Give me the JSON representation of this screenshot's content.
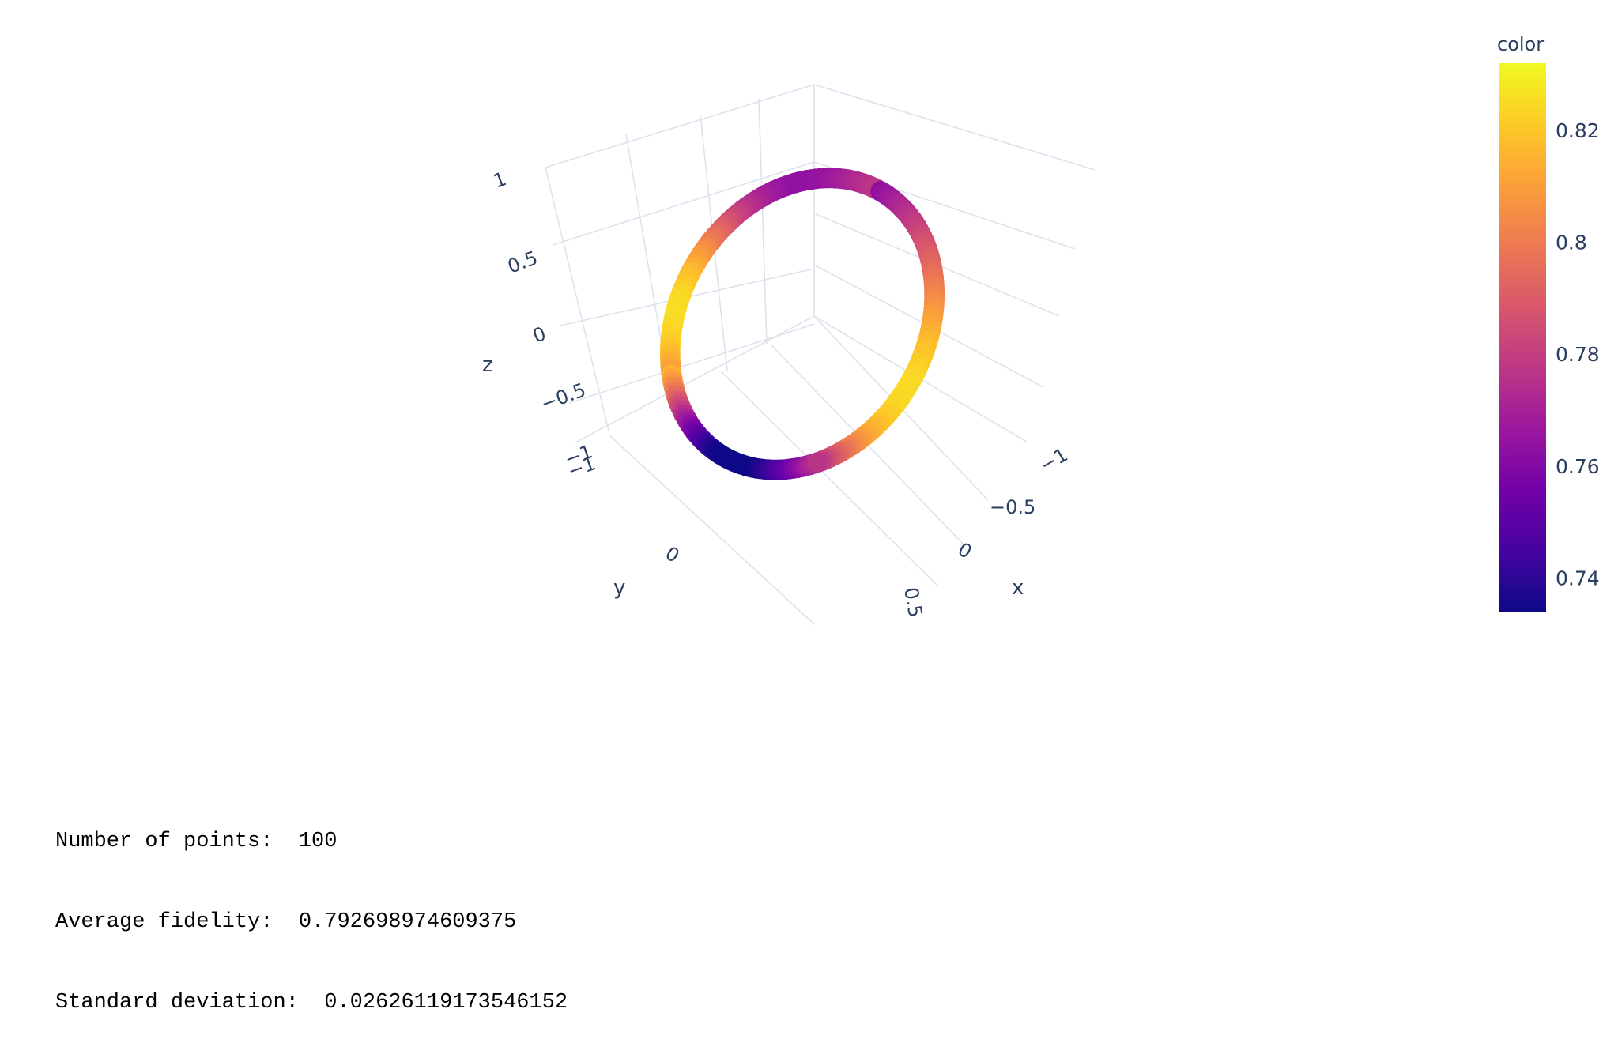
{
  "chart_data": {
    "type": "scatter3d",
    "title": "",
    "axes": {
      "x": {
        "label": "x",
        "ticks": [
          "−1",
          "−0.5",
          "0",
          "0.5"
        ]
      },
      "y": {
        "label": "y",
        "ticks": [
          "−1",
          "0"
        ]
      },
      "z": {
        "label": "z",
        "ticks": [
          "−1",
          "−0.5",
          "0",
          "0.5",
          "1"
        ]
      }
    },
    "colorbar": {
      "title": "color",
      "range": [
        0.734,
        0.832
      ],
      "ticks": [
        "0.74",
        "0.76",
        "0.78",
        "0.8",
        "0.82"
      ],
      "tick_values": [
        0.74,
        0.76,
        0.78,
        0.8,
        0.82
      ],
      "colorscale": "plasma"
    },
    "points": {
      "count": 100,
      "shape": "ring (unit circle)",
      "color_min": 0.734,
      "color_max": 0.832
    }
  },
  "stats": {
    "line1": "Number of points:  100",
    "line2": "Average fidelity:  0.792698974609375",
    "line3": "Standard deviation:  0.02626119173546152"
  }
}
